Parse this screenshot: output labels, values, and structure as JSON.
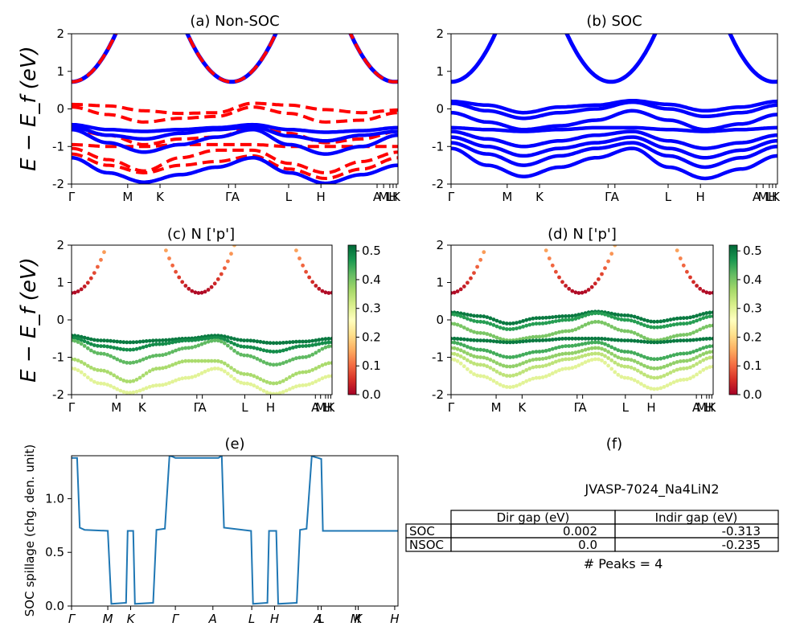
{
  "figure": {
    "ylabel_big": "E − E_f (eV)",
    "colors": {
      "red": "#ff0000",
      "blue": "#0000ff",
      "line_e": "#1f77b4",
      "axis": "#000000"
    }
  },
  "chart_data": [
    {
      "id": "a",
      "type": "line",
      "title": "(a) Non-SOC",
      "ylabel": "E − E_f (eV)",
      "ylim": [
        -2,
        2
      ],
      "yticks": [
        -2,
        -1,
        0,
        1,
        2
      ],
      "xlim": [
        0,
        1
      ],
      "xticks": [
        {
          "x": 0.0,
          "label": "Γ"
        },
        {
          "x": 0.172,
          "label": "M"
        },
        {
          "x": 0.271,
          "label": "K"
        },
        {
          "x": 0.481,
          "label": "Γ"
        },
        {
          "x": 0.502,
          "label": "A"
        },
        {
          "x": 0.665,
          "label": "L"
        },
        {
          "x": 0.764,
          "label": "H"
        },
        {
          "x": 0.936,
          "label": "A"
        },
        {
          "x": 0.956,
          "label": "M"
        },
        {
          "x": 0.975,
          "label": "L"
        },
        {
          "x": 0.985,
          "label": "H"
        },
        {
          "x": 0.995,
          "label": "K"
        }
      ],
      "series": [
        {
          "style": "dashed",
          "color": "#ff0000",
          "values": [
            0.12,
            0.08,
            -0.05,
            -0.12,
            -0.1,
            0.15,
            0.1,
            -0.02,
            -0.1,
            -0.03
          ]
        },
        {
          "style": "dashed",
          "color": "#ff0000",
          "values": [
            0.05,
            -0.15,
            -0.35,
            -0.25,
            -0.2,
            0.05,
            -0.12,
            -0.35,
            -0.3,
            -0.1
          ]
        },
        {
          "style": "dashed",
          "color": "#ff0000",
          "values": [
            -0.55,
            -0.7,
            -0.95,
            -0.8,
            -0.75,
            -0.5,
            -0.65,
            -0.9,
            -0.8,
            -0.6
          ]
        },
        {
          "style": "dashed",
          "color": "#ff0000",
          "values": [
            -0.95,
            -1.0,
            -1.0,
            -0.95,
            -0.95,
            -0.95,
            -1.0,
            -1.0,
            -1.0,
            -1.0
          ]
        },
        {
          "style": "dashed",
          "color": "#ff0000",
          "values": [
            -1.05,
            -1.35,
            -1.65,
            -1.3,
            -1.1,
            -1.1,
            -1.45,
            -1.7,
            -1.4,
            -1.15
          ]
        },
        {
          "style": "dashed",
          "color": "#ff0000",
          "values": [
            -1.2,
            -1.5,
            -1.7,
            -1.5,
            -1.4,
            -1.25,
            -1.6,
            -1.85,
            -1.6,
            -1.3
          ]
        },
        {
          "style": "solid",
          "color": "#0000ff",
          "values": [
            -0.42,
            -0.55,
            -0.6,
            -0.55,
            -0.5,
            -0.42,
            -0.55,
            -0.62,
            -0.58,
            -0.5
          ]
        },
        {
          "style": "solid",
          "color": "#0000ff",
          "values": [
            -0.48,
            -0.7,
            -0.8,
            -0.65,
            -0.55,
            -0.48,
            -0.72,
            -0.85,
            -0.7,
            -0.6
          ]
        },
        {
          "style": "solid",
          "color": "#0000ff",
          "values": [
            -0.55,
            -0.9,
            -1.15,
            -0.95,
            -0.75,
            -0.55,
            -0.95,
            -1.2,
            -1.0,
            -0.7
          ]
        },
        {
          "style": "solid",
          "color": "#0000ff",
          "values": [
            -1.3,
            -1.7,
            -1.95,
            -1.75,
            -1.55,
            -1.3,
            -1.7,
            -1.98,
            -1.75,
            -1.5
          ]
        }
      ]
    },
    {
      "id": "b",
      "type": "line",
      "title": "(b) SOC",
      "ylim": [
        -2,
        2
      ],
      "yticks": [
        -2,
        -1,
        0,
        1,
        2
      ],
      "xlim": [
        0,
        1
      ],
      "xticks": [
        {
          "x": 0.0,
          "label": "Γ"
        },
        {
          "x": 0.172,
          "label": "M"
        },
        {
          "x": 0.271,
          "label": "K"
        },
        {
          "x": 0.481,
          "label": "Γ"
        },
        {
          "x": 0.502,
          "label": "A"
        },
        {
          "x": 0.665,
          "label": "L"
        },
        {
          "x": 0.764,
          "label": "H"
        },
        {
          "x": 0.936,
          "label": "A"
        },
        {
          "x": 0.956,
          "label": "M"
        },
        {
          "x": 0.975,
          "label": "L"
        },
        {
          "x": 0.985,
          "label": "H"
        },
        {
          "x": 0.995,
          "label": "K"
        }
      ],
      "series": [
        {
          "style": "solid",
          "color": "#0000ff",
          "values": [
            0.2,
            0.1,
            -0.1,
            0.05,
            0.1,
            0.22,
            0.12,
            -0.05,
            0.05,
            0.2
          ]
        },
        {
          "style": "solid",
          "color": "#0000ff",
          "values": [
            0.15,
            -0.05,
            -0.25,
            -0.1,
            0.0,
            0.18,
            0.0,
            -0.2,
            -0.1,
            0.1
          ]
        },
        {
          "style": "solid",
          "color": "#0000ff",
          "values": [
            -0.1,
            -0.35,
            -0.55,
            -0.45,
            -0.3,
            -0.05,
            -0.3,
            -0.55,
            -0.4,
            -0.15
          ]
        },
        {
          "style": "solid",
          "color": "#0000ff",
          "values": [
            -0.5,
            -0.55,
            -0.6,
            -0.55,
            -0.5,
            -0.5,
            -0.55,
            -0.6,
            -0.55,
            -0.5
          ]
        },
        {
          "style": "solid",
          "color": "#0000ff",
          "values": [
            -0.6,
            -0.8,
            -1.0,
            -0.85,
            -0.7,
            -0.6,
            -0.85,
            -1.05,
            -0.9,
            -0.7
          ]
        },
        {
          "style": "solid",
          "color": "#0000ff",
          "values": [
            -0.75,
            -1.0,
            -1.25,
            -1.05,
            -0.9,
            -0.75,
            -1.05,
            -1.3,
            -1.1,
            -0.85
          ]
        },
        {
          "style": "solid",
          "color": "#0000ff",
          "values": [
            -0.9,
            -1.2,
            -1.5,
            -1.25,
            -1.05,
            -0.9,
            -1.25,
            -1.55,
            -1.3,
            -1.0
          ]
        },
        {
          "style": "solid",
          "color": "#0000ff",
          "values": [
            -1.05,
            -1.5,
            -1.8,
            -1.55,
            -1.3,
            -1.05,
            -1.55,
            -1.85,
            -1.6,
            -1.25
          ]
        }
      ]
    },
    {
      "id": "c",
      "type": "scatter",
      "title": "(c)  N ['p']",
      "ylabel": "E − E_f (eV)",
      "ylim": [
        -2,
        2
      ],
      "yticks": [
        -2,
        -1,
        0,
        1,
        2
      ],
      "xlim": [
        0,
        1
      ],
      "xticks": [
        {
          "x": 0.0,
          "label": "Γ"
        },
        {
          "x": 0.172,
          "label": "M"
        },
        {
          "x": 0.271,
          "label": "K"
        },
        {
          "x": 0.481,
          "label": "Γ"
        },
        {
          "x": 0.502,
          "label": "A"
        },
        {
          "x": 0.665,
          "label": "L"
        },
        {
          "x": 0.764,
          "label": "H"
        },
        {
          "x": 0.936,
          "label": "A"
        },
        {
          "x": 0.956,
          "label": "M"
        },
        {
          "x": 0.975,
          "label": "L"
        },
        {
          "x": 0.985,
          "label": "H"
        },
        {
          "x": 0.995,
          "label": "K"
        }
      ],
      "colorbar": {
        "min": 0.0,
        "max": 0.52,
        "ticks": [
          "0.0",
          "0.1",
          "0.2",
          "0.3",
          "0.4",
          "0.5"
        ],
        "colormap": "RdYlGn"
      },
      "series": [
        {
          "weight": 0.5,
          "values": [
            -0.42,
            -0.55,
            -0.6,
            -0.55,
            -0.5,
            -0.42,
            -0.55,
            -0.62,
            -0.58,
            -0.5
          ]
        },
        {
          "weight": 0.48,
          "values": [
            -0.48,
            -0.7,
            -0.8,
            -0.65,
            -0.55,
            -0.48,
            -0.72,
            -0.85,
            -0.7,
            -0.6
          ]
        },
        {
          "weight": 0.42,
          "values": [
            -0.55,
            -0.9,
            -1.15,
            -0.95,
            -0.75,
            -0.55,
            -0.95,
            -1.2,
            -1.0,
            -0.7
          ]
        },
        {
          "weight": 0.36,
          "values": [
            -1.05,
            -1.35,
            -1.65,
            -1.3,
            -1.1,
            -1.1,
            -1.45,
            -1.7,
            -1.4,
            -1.15
          ]
        },
        {
          "weight": 0.3,
          "values": [
            -1.3,
            -1.7,
            -1.95,
            -1.75,
            -1.55,
            -1.3,
            -1.7,
            -1.98,
            -1.75,
            -1.5
          ]
        }
      ]
    },
    {
      "id": "d",
      "type": "scatter",
      "title": "(d) N ['p']",
      "ylim": [
        -2,
        2
      ],
      "yticks": [
        -2,
        -1,
        0,
        1,
        2
      ],
      "xlim": [
        0,
        1
      ],
      "xticks": [
        {
          "x": 0.0,
          "label": "Γ"
        },
        {
          "x": 0.172,
          "label": "M"
        },
        {
          "x": 0.271,
          "label": "K"
        },
        {
          "x": 0.481,
          "label": "Γ"
        },
        {
          "x": 0.502,
          "label": "A"
        },
        {
          "x": 0.665,
          "label": "L"
        },
        {
          "x": 0.764,
          "label": "H"
        },
        {
          "x": 0.936,
          "label": "A"
        },
        {
          "x": 0.956,
          "label": "M"
        },
        {
          "x": 0.975,
          "label": "L"
        },
        {
          "x": 0.985,
          "label": "H"
        },
        {
          "x": 0.995,
          "label": "K"
        }
      ],
      "colorbar": {
        "min": 0.0,
        "max": 0.52,
        "ticks": [
          "0.0",
          "0.1",
          "0.2",
          "0.3",
          "0.4",
          "0.5"
        ],
        "colormap": "RdYlGn"
      },
      "series": [
        {
          "weight": 0.5,
          "values": [
            0.2,
            0.1,
            -0.1,
            0.05,
            0.1,
            0.22,
            0.12,
            -0.05,
            0.05,
            0.2
          ]
        },
        {
          "weight": 0.46,
          "values": [
            0.15,
            -0.05,
            -0.25,
            -0.1,
            0.0,
            0.18,
            0.0,
            -0.2,
            -0.1,
            0.1
          ]
        },
        {
          "weight": 0.4,
          "values": [
            -0.1,
            -0.35,
            -0.55,
            -0.45,
            -0.3,
            -0.05,
            -0.3,
            -0.55,
            -0.4,
            -0.15
          ]
        },
        {
          "weight": 0.5,
          "values": [
            -0.5,
            -0.55,
            -0.6,
            -0.55,
            -0.5,
            -0.5,
            -0.55,
            -0.6,
            -0.55,
            -0.5
          ]
        },
        {
          "weight": 0.44,
          "values": [
            -0.6,
            -0.8,
            -1.0,
            -0.85,
            -0.7,
            -0.6,
            -0.85,
            -1.05,
            -0.9,
            -0.7
          ]
        },
        {
          "weight": 0.38,
          "values": [
            -0.75,
            -1.0,
            -1.25,
            -1.05,
            -0.9,
            -0.75,
            -1.05,
            -1.3,
            -1.1,
            -0.85
          ]
        },
        {
          "weight": 0.34,
          "values": [
            -0.9,
            -1.2,
            -1.5,
            -1.25,
            -1.05,
            -0.9,
            -1.25,
            -1.55,
            -1.3,
            -1.0
          ]
        },
        {
          "weight": 0.3,
          "values": [
            -1.05,
            -1.5,
            -1.8,
            -1.55,
            -1.3,
            -1.05,
            -1.55,
            -1.85,
            -1.6,
            -1.25
          ]
        }
      ]
    },
    {
      "id": "e",
      "type": "line",
      "title": "(e)",
      "ylabel": "SOC spillage (chg. den. unit)",
      "ylim": [
        0,
        1.4
      ],
      "yticks": [
        {
          "v": 0.0,
          "label": "0.0"
        },
        {
          "v": 0.5,
          "label": "0.5"
        },
        {
          "v": 1.0,
          "label": "1.0"
        }
      ],
      "xlim": [
        0,
        1
      ],
      "xticks": [
        {
          "x": 0.0,
          "label": "Γ"
        },
        {
          "x": 0.111,
          "label": "M"
        },
        {
          "x": 0.181,
          "label": "K"
        },
        {
          "x": 0.318,
          "label": "Γ"
        },
        {
          "x": 0.433,
          "label": "A"
        },
        {
          "x": 0.552,
          "label": "L"
        },
        {
          "x": 0.622,
          "label": "H"
        },
        {
          "x": 0.755,
          "label": "A"
        },
        {
          "x": 0.765,
          "label": "L"
        },
        {
          "x": 0.87,
          "label": "M"
        },
        {
          "x": 0.878,
          "label": "K"
        },
        {
          "x": 0.99,
          "label": "H"
        }
      ],
      "x": [
        0.0,
        0.017,
        0.025,
        0.04,
        0.111,
        0.122,
        0.167,
        0.172,
        0.189,
        0.194,
        0.25,
        0.26,
        0.286,
        0.3,
        0.31,
        0.318,
        0.38,
        0.45,
        0.46,
        0.467,
        0.55,
        0.556,
        0.6,
        0.605,
        0.627,
        0.633,
        0.69,
        0.7,
        0.72,
        0.736,
        0.742,
        0.755,
        0.765,
        0.77,
        0.84,
        0.87,
        1.0
      ],
      "y": [
        1.38,
        1.38,
        0.73,
        0.71,
        0.7,
        0.02,
        0.03,
        0.7,
        0.7,
        0.02,
        0.03,
        0.71,
        0.72,
        1.4,
        1.39,
        1.38,
        1.38,
        1.38,
        1.4,
        0.73,
        0.7,
        0.02,
        0.03,
        0.7,
        0.7,
        0.02,
        0.03,
        0.71,
        0.72,
        1.4,
        1.39,
        1.38,
        1.37,
        0.7,
        0.7,
        0.7,
        0.7
      ]
    }
  ],
  "panel_f": {
    "title": "(f)",
    "material": "JVASP-7024_Na4LiN2",
    "columns": [
      "Dir gap (eV)",
      "Indir gap (eV)"
    ],
    "rows": [
      {
        "label": "SOC",
        "dir": "0.002",
        "indir": "-0.313"
      },
      {
        "label": "NSOC",
        "dir": "0.0",
        "indir": "-0.235"
      }
    ],
    "peaks": "# Peaks = 4"
  }
}
